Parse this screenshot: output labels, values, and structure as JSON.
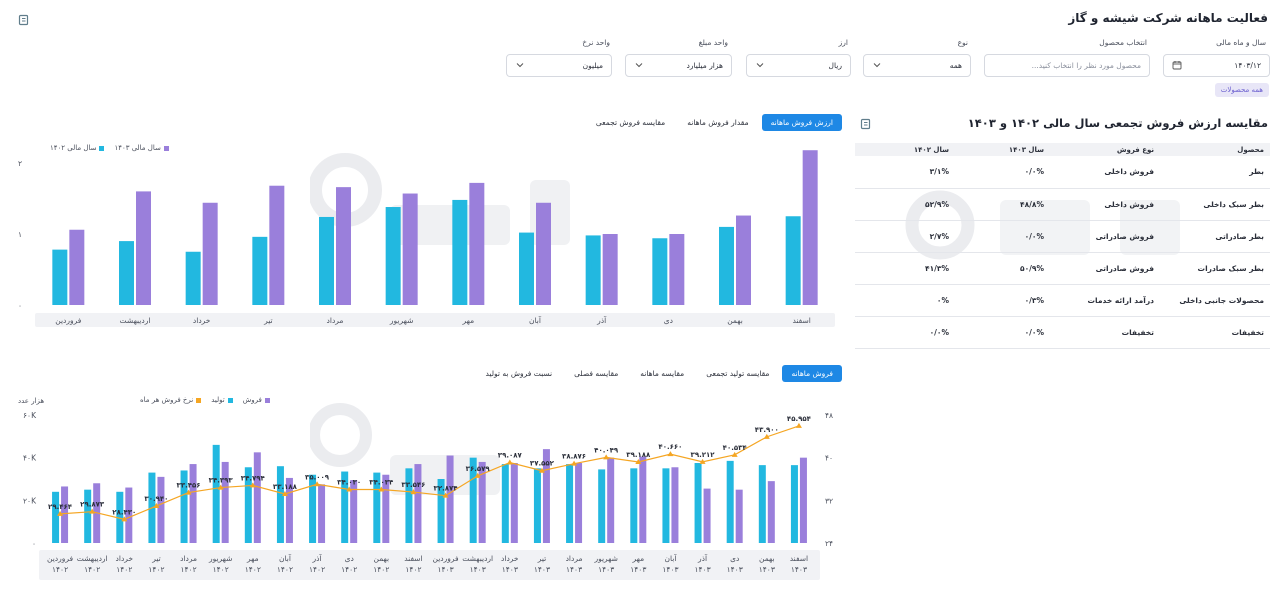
{
  "title": "فعالیت ماهانه شرکت شیشه و گاز",
  "filters": {
    "period": {
      "label": "سال و ماه مالی",
      "value": "۱۴۰۳/۱۲"
    },
    "product": {
      "label": "انتخاب محصول",
      "placeholder": "محصول مورد نظر را انتخاب کنید..."
    },
    "type": {
      "label": "نوع",
      "value": "همه"
    },
    "currency": {
      "label": "ارز",
      "value": "ریال"
    },
    "amount_unit": {
      "label": "واحد مبلغ",
      "value": "هزار میلیارد"
    },
    "rate_unit": {
      "label": "واحد نرخ",
      "value": "میلیون"
    },
    "chip": "همه محصولات"
  },
  "comparison": {
    "title": "مقایسه ارزش فروش تجمعی سال مالی ۱۴۰۲ و ۱۴۰۳",
    "headers": [
      "محصول",
      "نوع فروش",
      "سال ۱۴۰۳",
      "سال ۱۴۰۲"
    ],
    "rows": [
      [
        "بطر",
        "فروش داخلی",
        "۰/۰%",
        "۳/۱%"
      ],
      [
        "بطر سبک داخلی",
        "فروش داخلی",
        "۴۸/۸%",
        "۵۲/۹%"
      ],
      [
        "بطر صادراتی",
        "فروش صادراتی",
        "۰/۰%",
        "۲/۷%"
      ],
      [
        "بطر سبک صادرات",
        "فروش صادراتی",
        "۵۰/۹%",
        "۴۱/۳%"
      ],
      [
        "محصولات جانبی داخلی",
        "درآمد ارائه خدمات",
        "۰/۳%",
        "۰%"
      ],
      [
        "تخفیفات",
        "تخفیفات",
        "۰/۰%",
        "۰/۰%"
      ]
    ]
  },
  "top_tabs": [
    "ارزش فروش ماهانه",
    "مقدار فروش ماهانه",
    "مقایسه فروش تجمعی"
  ],
  "bottom_tabs": [
    "فروش ماهانه",
    "مقایسه تولید تجمعی",
    "مقایسه ماهانه",
    "مقایسه فصلی",
    "نسبت فروش به تولید"
  ],
  "colors": {
    "cyan": "#22b8e0",
    "purple": "#9a7fdb",
    "orange": "#f5a623",
    "accent": "#1e88e5"
  },
  "icons": {
    "corner": "square-icon",
    "calendar": "calendar-icon",
    "chevron": "chevron-down-icon"
  },
  "chart_data": [
    {
      "type": "bar",
      "legend": [
        "سال مالی ۱۴۰۳",
        "سال مالی ۱۴۰۲"
      ],
      "categories": [
        "اسفند",
        "بهمن",
        "دی",
        "آذر",
        "آبان",
        "مهر",
        "شهریور",
        "مرداد",
        "تیر",
        "خرداد",
        "اردیبهشت",
        "فروردین"
      ],
      "series": [
        {
          "name": "سال مالی ۱۴۰۲",
          "values": [
            1.25,
            1.1,
            0.94,
            0.98,
            1.02,
            1.48,
            1.38,
            1.24,
            0.96,
            0.75,
            0.9,
            0.78
          ]
        },
        {
          "name": "سال مالی ۱۴۰۳",
          "values": [
            2.18,
            1.26,
            1.0,
            1.0,
            1.44,
            1.72,
            1.57,
            1.66,
            1.68,
            1.44,
            1.6,
            1.06
          ]
        }
      ],
      "y_ticks": [
        "۰",
        "۱",
        "۲"
      ],
      "ylim": [
        0,
        2
      ]
    },
    {
      "type": "bar",
      "legend": [
        "فروش",
        "تولید",
        "نرخ فروش هر ماه"
      ],
      "unit_left": "هزار عدد",
      "categories": [
        [
          "اسفند",
          "۱۴۰۳"
        ],
        [
          "بهمن",
          "۱۴۰۳"
        ],
        [
          "دی",
          "۱۴۰۳"
        ],
        [
          "آذر",
          "۱۴۰۳"
        ],
        [
          "آبان",
          "۱۴۰۳"
        ],
        [
          "مهر",
          "۱۴۰۳"
        ],
        [
          "شهریور",
          "۱۴۰۳"
        ],
        [
          "مرداد",
          "۱۴۰۳"
        ],
        [
          "تیر",
          "۱۴۰۳"
        ],
        [
          "خرداد",
          "۱۴۰۳"
        ],
        [
          "اردیبهشت",
          "۱۴۰۳"
        ],
        [
          "فروردین",
          "۱۴۰۳"
        ],
        [
          "اسفند",
          "۱۴۰۲"
        ],
        [
          "بهمن",
          "۱۴۰۲"
        ],
        [
          "دی",
          "۱۴۰۲"
        ],
        [
          "آذر",
          "۱۴۰۲"
        ],
        [
          "آبان",
          "۱۴۰۲"
        ],
        [
          "مهر",
          "۱۴۰۲"
        ],
        [
          "شهریور",
          "۱۴۰۲"
        ],
        [
          "مرداد",
          "۱۴۰۲"
        ],
        [
          "تیر",
          "۱۴۰۲"
        ],
        [
          "خرداد",
          "۱۴۰۲"
        ],
        [
          "اردیبهشت",
          "۱۴۰۲"
        ],
        [
          "فروردین",
          "۱۴۰۲"
        ]
      ],
      "series": [
        {
          "name": "تولید",
          "values": [
            36500,
            36500,
            38500,
            37500,
            35000,
            35000,
            34500,
            37000,
            35000,
            37000,
            40000,
            30000,
            35000,
            33000,
            33500,
            32000,
            36000,
            35500,
            46000,
            34000,
            33000,
            24000,
            25000,
            24000
          ]
        },
        {
          "name": "فروش",
          "values": [
            40000,
            29000,
            25000,
            25500,
            35500,
            40500,
            40000,
            37500,
            44000,
            37500,
            38000,
            41000,
            37000,
            32000,
            29500,
            27500,
            30500,
            42500,
            38000,
            37000,
            31000,
            26000,
            28000,
            26500
          ]
        },
        {
          "name": "نرخ فروش هر ماه",
          "values": [
            45.954,
            43.9,
            40.534,
            39.212,
            40.66,
            39.188,
            40.049,
            38.876,
            37.552,
            39.087,
            36.579,
            32.874,
            33.546,
            34.034,
            34.03,
            35.009,
            33.188,
            34.794,
            34.393,
            33.456,
            30.94,
            28.43,
            29.873,
            29.464
          ]
        }
      ],
      "y_ticks_left": [
        "۰",
        "۲۰K",
        "۴۰K",
        "۶۰K"
      ],
      "y_ticks_right": [
        "۲۴",
        "۳۲",
        "۴۰",
        "۴۸"
      ],
      "ylim_left": [
        0,
        60000
      ],
      "ylim_right": [
        24,
        48
      ],
      "rate_labels": [
        "۴۵.۹۵۴",
        "۴۳.۹۰۰",
        "۴۰.۵۳۴",
        "۳۹.۲۱۲",
        "۴۰.۶۶۰",
        "۳۹.۱۸۸",
        "۴۰.۰۴۹",
        "۳۸.۸۷۶",
        "۳۷.۵۵۲",
        "۳۹.۰۸۷",
        "۳۶.۵۷۹",
        "۳۲.۸۷۴",
        "۳۳.۵۴۶",
        "۳۴.۰۳۴",
        "۳۴.۰۳۰",
        "۳۵.۰۰۹",
        "۳۳.۱۸۸",
        "۳۴.۷۹۴",
        "۳۴.۳۹۳",
        "۳۳.۴۵۶",
        "۳۰.۹۴۰",
        "۲۸.۴۳۰",
        "۲۹.۸۷۳",
        "۲۹.۴۶۴"
      ]
    }
  ]
}
